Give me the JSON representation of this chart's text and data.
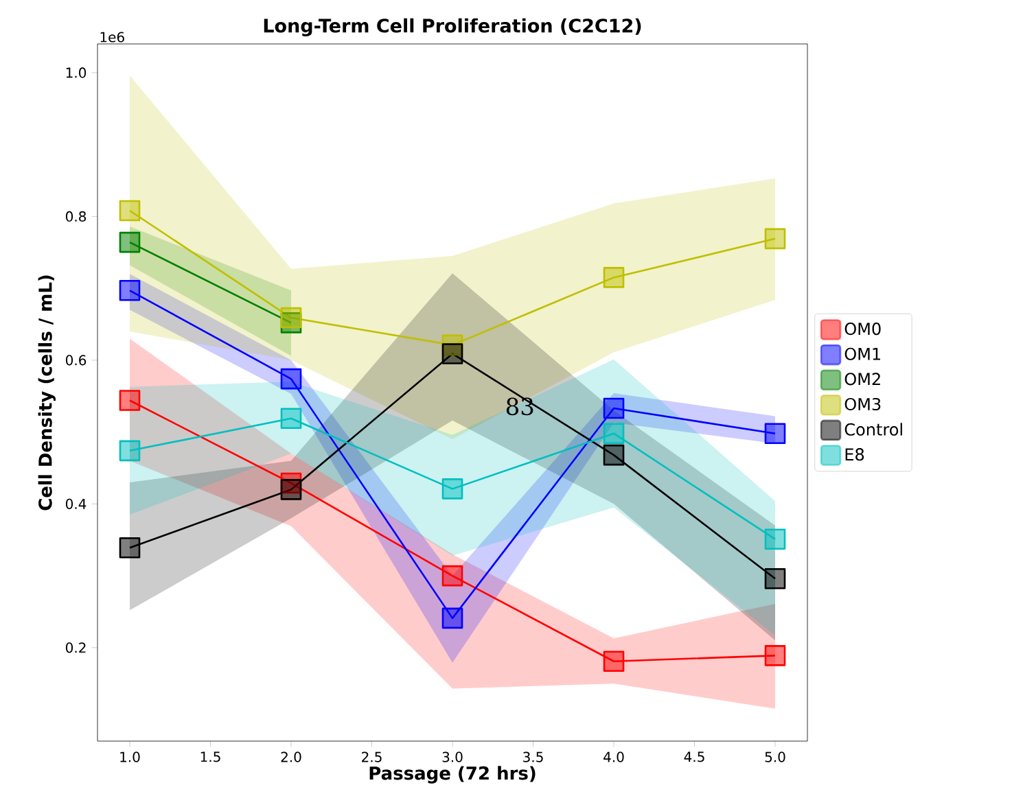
{
  "chart_data": {
    "type": "line",
    "title": "Long-Term Cell Proliferation (C2C12)",
    "xlabel": "Passage (72 hrs)",
    "ylabel": "Cell Density (cells / mL)",
    "x": [
      1,
      2,
      3,
      4,
      5
    ],
    "series": [
      {
        "name": "OM0",
        "color": "#ff0000",
        "values": [
          0.544,
          0.429,
          0.3,
          0.181,
          0.189
        ],
        "lower": [
          0.46,
          0.369,
          0.143,
          0.15,
          0.115
        ],
        "upper": [
          0.63,
          0.47,
          0.33,
          0.213,
          0.261
        ]
      },
      {
        "name": "OM1",
        "color": "#0000ff",
        "values": [
          0.697,
          0.574,
          0.241,
          0.533,
          0.498
        ],
        "lower": [
          0.67,
          0.553,
          0.179,
          0.513,
          0.484
        ],
        "upper": [
          0.72,
          0.6,
          0.3,
          0.554,
          0.522
        ]
      },
      {
        "name": "OM2",
        "color": "#008000",
        "values": [
          0.764,
          0.652,
          null,
          null,
          null
        ],
        "lower": [
          0.732,
          0.606,
          null,
          null,
          null
        ],
        "upper": [
          0.786,
          0.697,
          null,
          null,
          null
        ]
      },
      {
        "name": "OM3",
        "color": "#bfbf00",
        "values": [
          0.808,
          0.659,
          0.621,
          0.715,
          0.769
        ],
        "lower": [
          0.64,
          0.6,
          0.49,
          0.611,
          0.684
        ],
        "upper": [
          0.996,
          0.727,
          0.745,
          0.818,
          0.853
        ]
      },
      {
        "name": "Control",
        "color": "#000000",
        "values": [
          0.339,
          0.42,
          0.609,
          0.468,
          0.296
        ],
        "lower": [
          0.252,
          0.38,
          0.516,
          0.4,
          0.21
        ],
        "upper": [
          0.43,
          0.46,
          0.721,
          0.53,
          0.37
        ]
      },
      {
        "name": "E8",
        "color": "#00bfbf",
        "values": [
          0.474,
          0.519,
          0.421,
          0.498,
          0.351
        ],
        "lower": [
          0.385,
          0.47,
          0.328,
          0.395,
          0.217
        ],
        "upper": [
          0.563,
          0.57,
          0.496,
          0.601,
          0.404
        ]
      }
    ],
    "xlim": [
      0.8,
      5.2
    ],
    "ylim": [
      0.07,
      1.04
    ],
    "xticks": [
      {
        "value": 1,
        "label": "1.0"
      },
      1.5,
      {
        "value": 2,
        "label": "2.0"
      },
      2.5,
      {
        "value": 3,
        "label": "3.0"
      },
      3.5,
      {
        "value": 4,
        "label": "4.0"
      },
      4.5,
      {
        "value": 5,
        "label": "5.0"
      }
    ],
    "yticks": [
      0.2,
      0.4,
      0.6,
      0.8,
      {
        "value": 1,
        "label": "1.0"
      }
    ],
    "annotations": [
      "1e6",
      "83"
    ],
    "marker": "square",
    "line_style": "solid",
    "legend": "right",
    "grid": false
  }
}
